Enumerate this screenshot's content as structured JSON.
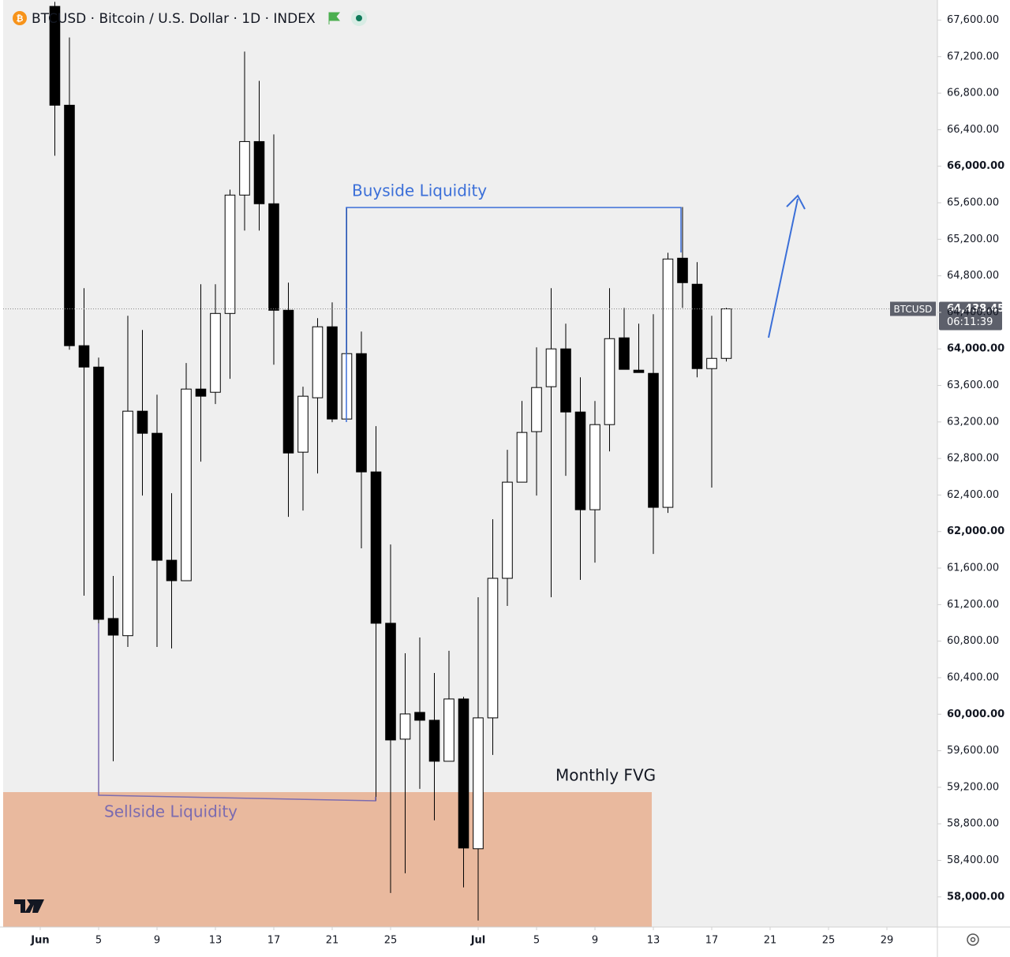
{
  "chart_data": {
    "type": "candlestick",
    "title": "BTCUSD · Bitcoin / U.S. Dollar · 1D · INDEX",
    "x": [
      2,
      3,
      4,
      5,
      6,
      7,
      8,
      9,
      10,
      11,
      12,
      13,
      14,
      15,
      16,
      17,
      18,
      19,
      20,
      21,
      22,
      23,
      24,
      25,
      26,
      27,
      28,
      29,
      30,
      31,
      32,
      33,
      34,
      35,
      36,
      37,
      38,
      39,
      40,
      41,
      42,
      43,
      44,
      45,
      46,
      47,
      48
    ],
    "open": [
      67750,
      66668,
      64035,
      63801,
      61048,
      60860,
      63318,
      63076,
      61686,
      61462,
      63560,
      63525,
      64388,
      65684,
      66270,
      65589,
      64423,
      62869,
      63465,
      64242,
      63232,
      63948,
      62653,
      60996,
      59727,
      60020,
      59934,
      59485,
      60167,
      58527,
      59960,
      61488,
      62541,
      63094,
      63586,
      64000,
      63309,
      62239,
      63171,
      64121,
      63767,
      63732,
      62265,
      64993,
      64708,
      63784,
      63896
    ],
    "high": [
      67800,
      67410,
      64665,
      63905,
      61514,
      64363,
      64207,
      63499,
      62420,
      63845,
      64708,
      64708,
      65744,
      67255,
      66935,
      66348,
      64725,
      63586,
      64337,
      64509,
      65545,
      64190,
      63154,
      61859,
      60668,
      60840,
      60452,
      60694,
      60190,
      61281,
      62135,
      62895,
      63430,
      64017,
      64665,
      64276,
      63689,
      63430,
      64665,
      64449,
      64276,
      64380,
      65053,
      65554,
      64950,
      64363,
      64449
    ],
    "low": [
      66115,
      63991,
      61298,
      59114,
      59485,
      60737,
      62394,
      60737,
      60720,
      61462,
      62766,
      63396,
      63672,
      65295,
      65295,
      63827,
      62161,
      62230,
      62636,
      63197,
      63232,
      61816,
      59053,
      58043,
      58259,
      59183,
      58838,
      59485,
      58104,
      57741,
      59554,
      61186,
      62541,
      62394,
      61281,
      62610,
      61471,
      61660,
      62878,
      63776,
      63741,
      61755,
      62204,
      64449,
      63689,
      62481,
      63862
    ],
    "close": [
      66668,
      64035,
      63801,
      61039,
      60866,
      63318,
      63076,
      61686,
      61462,
      63560,
      63482,
      64388,
      65684,
      66270,
      65589,
      64423,
      62860,
      63482,
      64242,
      63232,
      63948,
      62653,
      60996,
      59718,
      60003,
      59934,
      59485,
      60167,
      58535,
      59960,
      61488,
      62541,
      63085,
      63577,
      64000,
      63309,
      62239,
      63171,
      64112,
      63776,
      63741,
      62265,
      64984,
      64725,
      63784,
      63896,
      64438.45
    ],
    "xlim": [
      -1.54,
      62.46
    ],
    "xticks": [
      {
        "value": 1,
        "label": "Jun"
      },
      5,
      9,
      13,
      17,
      21,
      25,
      {
        "value": 31,
        "label": "Jul"
      },
      {
        "value": 35,
        "label": "5"
      },
      {
        "value": 39,
        "label": "9"
      },
      {
        "value": 43,
        "label": "13"
      },
      {
        "value": 47,
        "label": "17"
      },
      {
        "value": 51,
        "label": "21"
      },
      {
        "value": 55,
        "label": "25"
      },
      {
        "value": 59,
        "label": "29"
      }
    ],
    "ylim": [
      57670,
      67820
    ],
    "yticks": [
      {
        "value": 58000,
        "label": "58,000.00"
      },
      {
        "value": 58400,
        "label": "58,400.00"
      },
      {
        "value": 58800,
        "label": "58,800.00"
      },
      {
        "value": 59200,
        "label": "59,200.00"
      },
      {
        "value": 59600,
        "label": "59,600.00"
      },
      {
        "value": 60000,
        "label": "60,000.00"
      },
      {
        "value": 60400,
        "label": "60,400.00"
      },
      {
        "value": 60800,
        "label": "60,800.00"
      },
      {
        "value": 61200,
        "label": "61,200.00"
      },
      {
        "value": 61600,
        "label": "61,600.00"
      },
      {
        "value": 62000,
        "label": "62,000.00"
      },
      {
        "value": 62400,
        "label": "62,400.00"
      },
      {
        "value": 62800,
        "label": "62,800.00"
      },
      {
        "value": 63200,
        "label": "63,200.00"
      },
      {
        "value": 63600,
        "label": "63,600.00"
      },
      {
        "value": 64000,
        "label": "64,000.00"
      },
      {
        "value": 64400,
        "label": "64,400.00"
      },
      {
        "value": 64800,
        "label": "64,800.00"
      },
      {
        "value": 65200,
        "label": "65,200.00"
      },
      {
        "value": 65600,
        "label": "65,600.00"
      },
      {
        "value": 66000,
        "label": "66,000.00"
      },
      {
        "value": 66400,
        "label": "66,400.00"
      },
      {
        "value": 66800,
        "label": "66,800.00"
      },
      {
        "value": 67200,
        "label": "67,200.00"
      },
      {
        "value": 67600,
        "label": "67,600.00"
      }
    ],
    "up_color": "#ffffff",
    "down_color": "#000000",
    "price_label": {
      "symbol": "BTCUSD",
      "value": 64438.45,
      "label": "64,438.45",
      "countdown": "06:11:39"
    },
    "annotations": [
      "Buyside Liquidity",
      "Sellside Liquidity",
      "Monthly FVG"
    ]
  }
}
